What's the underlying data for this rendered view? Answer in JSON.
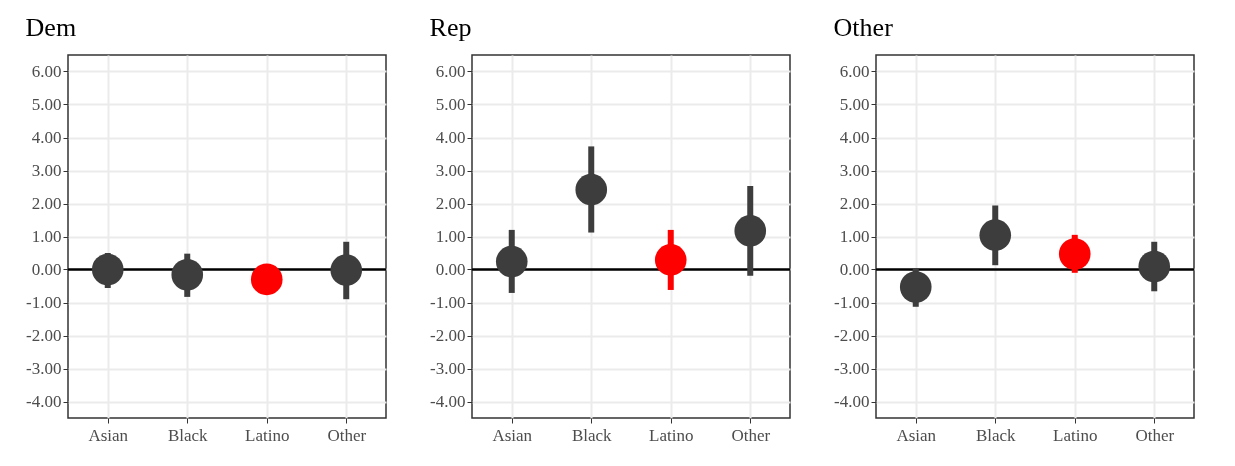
{
  "chart_data": [
    {
      "type": "scatter",
      "title": "Dem",
      "categories": [
        "Asian",
        "Black",
        "Latino",
        "Other"
      ],
      "values": [
        0.0,
        -0.16,
        -0.3,
        -0.02
      ],
      "errors": [
        [
          -0.56,
          0.5
        ],
        [
          -0.83,
          0.48
        ],
        null,
        [
          -0.9,
          0.84
        ]
      ],
      "colors": [
        "#3d3d3d",
        "#3d3d3d",
        "#ff0000",
        "#3d3d3d"
      ],
      "ylim": [
        -4.5,
        6.5
      ],
      "yticks": [
        {
          "value": -4,
          "label": "-4.00"
        },
        {
          "value": -3,
          "label": "-3.00"
        },
        {
          "value": -2,
          "label": "-2.00"
        },
        {
          "value": -1,
          "label": "-1.00"
        },
        {
          "value": 0,
          "label": "0.00"
        },
        {
          "value": 1,
          "label": "1.00"
        },
        {
          "value": 2,
          "label": "2.00"
        },
        {
          "value": 3,
          "label": "3.00"
        },
        {
          "value": 4,
          "label": "4.00"
        },
        {
          "value": 5,
          "label": "5.00"
        },
        {
          "value": 6,
          "label": "6.00"
        }
      ],
      "ref_lines": [
        {
          "axis": "y",
          "value": 0,
          "color": "#000000"
        }
      ],
      "grid": true,
      "marker": "circle"
    },
    {
      "type": "scatter",
      "title": "Rep",
      "categories": [
        "Asian",
        "Black",
        "Latino",
        "Other"
      ],
      "values": [
        0.24,
        2.42,
        0.29,
        1.17
      ],
      "errors": [
        [
          -0.71,
          1.2
        ],
        [
          1.12,
          3.73
        ],
        [
          -0.62,
          1.2
        ],
        [
          -0.19,
          2.53
        ]
      ],
      "colors": [
        "#3d3d3d",
        "#3d3d3d",
        "#ff0000",
        "#3d3d3d"
      ],
      "ylim": [
        -4.5,
        6.5
      ],
      "yticks": [
        {
          "value": -4,
          "label": "-4.00"
        },
        {
          "value": -3,
          "label": "-3.00"
        },
        {
          "value": -2,
          "label": "-2.00"
        },
        {
          "value": -1,
          "label": "-1.00"
        },
        {
          "value": 0,
          "label": "0.00"
        },
        {
          "value": 1,
          "label": "1.00"
        },
        {
          "value": 2,
          "label": "2.00"
        },
        {
          "value": 3,
          "label": "3.00"
        },
        {
          "value": 4,
          "label": "4.00"
        },
        {
          "value": 5,
          "label": "5.00"
        },
        {
          "value": 6,
          "label": "6.00"
        }
      ],
      "ref_lines": [
        {
          "axis": "y",
          "value": 0,
          "color": "#000000"
        }
      ],
      "grid": true,
      "marker": "circle"
    },
    {
      "type": "scatter",
      "title": "Other",
      "categories": [
        "Asian",
        "Black",
        "Latino",
        "Other"
      ],
      "values": [
        -0.53,
        1.04,
        0.47,
        0.09
      ],
      "errors": [
        [
          -1.13,
          0.04
        ],
        [
          0.13,
          1.94
        ],
        [
          -0.1,
          1.05
        ],
        [
          -0.66,
          0.84
        ]
      ],
      "colors": [
        "#3d3d3d",
        "#3d3d3d",
        "#ff0000",
        "#3d3d3d"
      ],
      "ylim": [
        -4.5,
        6.5
      ],
      "yticks": [
        {
          "value": -4,
          "label": "-4.00"
        },
        {
          "value": -3,
          "label": "-3.00"
        },
        {
          "value": -2,
          "label": "-2.00"
        },
        {
          "value": -1,
          "label": "-1.00"
        },
        {
          "value": 0,
          "label": "0.00"
        },
        {
          "value": 1,
          "label": "1.00"
        },
        {
          "value": 2,
          "label": "2.00"
        },
        {
          "value": 3,
          "label": "3.00"
        },
        {
          "value": 4,
          "label": "4.00"
        },
        {
          "value": 5,
          "label": "5.00"
        },
        {
          "value": 6,
          "label": "6.00"
        }
      ],
      "ref_lines": [
        {
          "axis": "y",
          "value": 0,
          "color": "#000000"
        }
      ],
      "grid": true,
      "marker": "circle"
    }
  ]
}
